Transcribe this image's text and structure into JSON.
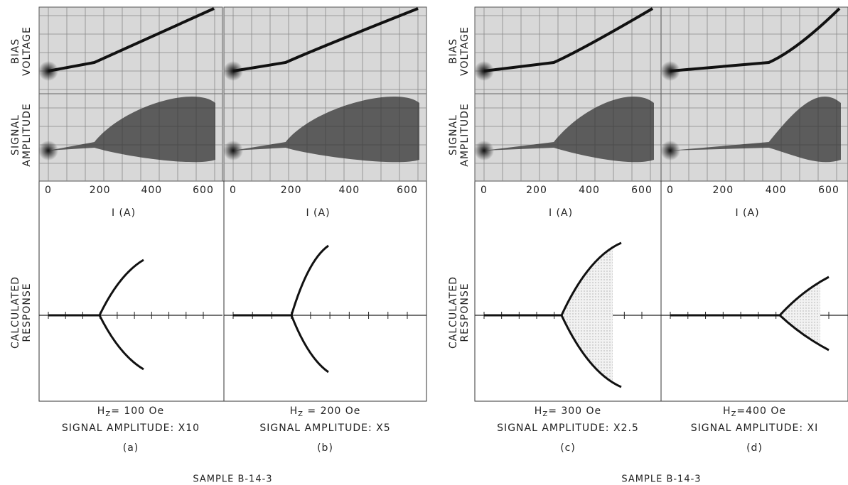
{
  "groups": [
    {
      "side_labels": {
        "bias": [
          "BIAS",
          "VOLTAGE"
        ],
        "signal": [
          "SIGNAL",
          "AMPLITUDE"
        ],
        "calculated": [
          "CALCULATED",
          "RESPONSE"
        ]
      },
      "sample": "SAMPLE B-14-3",
      "panels": [
        {
          "x_ticks": [
            0,
            200,
            400,
            600
          ],
          "x_label": "I (A)",
          "field": {
            "symbol": "H",
            "subscript": "Z",
            "value": "= 100 Oe"
          },
          "amplitude": "SIGNAL AMPLITUDE: X10",
          "tag": "(a)"
        },
        {
          "x_ticks": [
            0,
            200,
            400,
            600
          ],
          "x_label": "I (A)",
          "field": {
            "symbol": "H",
            "subscript": "Z",
            "value": " = 200 Oe"
          },
          "amplitude": "SIGNAL AMPLITUDE: X5",
          "tag": "(b)"
        }
      ]
    },
    {
      "side_labels": {
        "bias": [
          "BIAS",
          "VOLTAGE"
        ],
        "signal": [
          "SIGNAL",
          "AMPLITUDE"
        ],
        "calculated": [
          "CALCULATED",
          "RESPONSE"
        ]
      },
      "sample": "SAMPLE B-14-3",
      "panels": [
        {
          "x_ticks": [
            0,
            200,
            400,
            600
          ],
          "x_label": "I (A)",
          "field": {
            "symbol": "H",
            "subscript": "Z",
            "value": "= 300 Oe"
          },
          "amplitude": "SIGNAL AMPLITUDE: X2.5",
          "tag": "(c)"
        },
        {
          "x_ticks": [
            0,
            200,
            400,
            600
          ],
          "x_label": "I (A)",
          "field": {
            "symbol": "H",
            "subscript": "Z",
            "value": "=400 Oe"
          },
          "amplitude": "SIGNAL AMPLITUDE: XI",
          "tag": "(d)"
        }
      ]
    }
  ]
}
